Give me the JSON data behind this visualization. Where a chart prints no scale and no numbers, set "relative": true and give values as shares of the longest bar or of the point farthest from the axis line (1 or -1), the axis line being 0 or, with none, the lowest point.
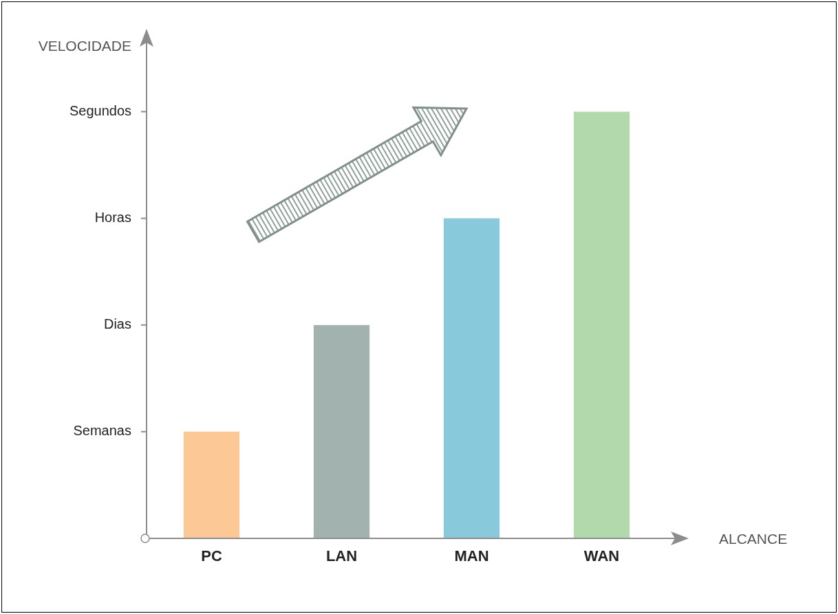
{
  "chart_data": {
    "type": "bar",
    "xlabel": "ALCANCE",
    "ylabel": "VELOCIDADE",
    "relative": true,
    "categories": [
      "PC",
      "LAN",
      "MAN",
      "WAN"
    ],
    "values": [
      0.25,
      0.5,
      0.75,
      1
    ],
    "colors": [
      "#fcc896",
      "#a2b3af",
      "#89c9dc",
      "#b2d9ab"
    ],
    "annotations": [
      "Semanas",
      "Dias",
      "Horas",
      "Segundos"
    ],
    "grid": false
  }
}
